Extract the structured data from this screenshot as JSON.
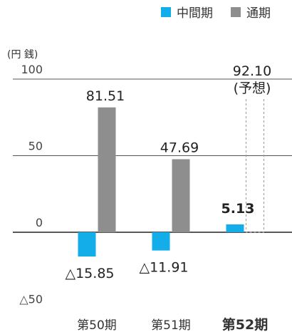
{
  "colors": {
    "interim": "#13adea",
    "annual": "#8e8e8e",
    "gridline": "#555555",
    "zeroline": "#222222",
    "forecast_outline": "#999999"
  },
  "legend": [
    {
      "label": "中間期",
      "color": "#13adea"
    },
    {
      "label": "通期",
      "color": "#8e8e8e"
    }
  ],
  "chart_data": {
    "type": "bar",
    "unit_label": "(円 銭)",
    "categories": [
      "第50期",
      "第51期",
      "第52期"
    ],
    "category_bold": [
      false,
      false,
      true
    ],
    "series": [
      {
        "name": "中間期",
        "values": [
          -15.85,
          -11.91,
          5.13
        ]
      },
      {
        "name": "通期",
        "values": [
          81.51,
          47.69,
          92.1
        ]
      }
    ],
    "forecast": {
      "series_index": 1,
      "category_index": 2,
      "label": "(予想)"
    },
    "value_labels": {
      "中間期": [
        "△15.85",
        "△11.91",
        "5.13"
      ],
      "通期": [
        "81.51",
        "47.69",
        "92.10"
      ]
    },
    "y_ticks": [
      100,
      50,
      0,
      -50
    ],
    "y_tick_labels": [
      "100",
      "50",
      "0",
      "△50"
    ],
    "ylim": [
      -50,
      100
    ],
    "grid": true,
    "legend_position": "top-right"
  }
}
